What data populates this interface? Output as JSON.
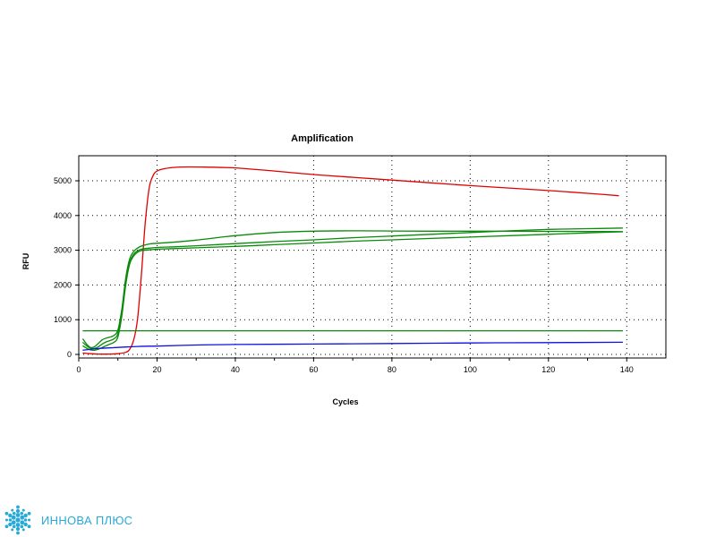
{
  "chart_data": {
    "type": "line",
    "title": "Amplification",
    "xlabel": "Cycles",
    "ylabel": "RFU",
    "xlim": [
      0,
      150
    ],
    "ylim": [
      -100,
      5450
    ],
    "x_ticks": [
      0,
      20,
      40,
      60,
      80,
      100,
      120,
      140
    ],
    "y_ticks": [
      0,
      1000,
      2000,
      3000,
      4000,
      5000
    ],
    "grid": true,
    "series": [
      {
        "color": "#e00000",
        "x": [
          1,
          3,
          5,
          8,
          10,
          12,
          13,
          14,
          15,
          16,
          17,
          18,
          19,
          20,
          22,
          25,
          28,
          32,
          40,
          50,
          60,
          70,
          80,
          90,
          100,
          110,
          120,
          130,
          138
        ],
        "y": [
          40,
          20,
          10,
          10,
          20,
          60,
          150,
          400,
          1000,
          2300,
          3800,
          4800,
          5150,
          5280,
          5350,
          5390,
          5400,
          5395,
          5370,
          5280,
          5180,
          5100,
          5020,
          4940,
          4860,
          4790,
          4720,
          4640,
          4570
        ]
      },
      {
        "color": "#0a8a0a",
        "x": [
          1,
          2,
          3,
          4,
          5,
          6,
          7,
          8,
          9,
          10,
          11,
          12,
          13,
          14,
          15,
          16,
          18,
          20,
          25,
          30,
          40,
          50,
          60,
          70,
          80,
          90,
          100,
          110,
          120,
          130,
          139
        ],
        "y": [
          450,
          300,
          200,
          220,
          320,
          420,
          470,
          500,
          550,
          700,
          1300,
          2200,
          2750,
          2960,
          3060,
          3120,
          3180,
          3200,
          3240,
          3290,
          3420,
          3510,
          3550,
          3560,
          3555,
          3550,
          3550,
          3550,
          3545,
          3540,
          3535
        ]
      },
      {
        "color": "#0a8a0a",
        "x": [
          1,
          2,
          3,
          4,
          5,
          6,
          7,
          8,
          9,
          10,
          11,
          12,
          13,
          14,
          15,
          16,
          18,
          20,
          25,
          30,
          40,
          50,
          60,
          70,
          80,
          90,
          100,
          110,
          120,
          130,
          139
        ],
        "y": [
          350,
          250,
          180,
          170,
          220,
          300,
          360,
          400,
          450,
          600,
          1200,
          2100,
          2650,
          2880,
          2980,
          3030,
          3060,
          3080,
          3100,
          3130,
          3190,
          3250,
          3300,
          3360,
          3410,
          3460,
          3510,
          3560,
          3600,
          3620,
          3640
        ]
      },
      {
        "color": "#0a8a0a",
        "x": [
          1,
          2,
          3,
          4,
          5,
          6,
          7,
          8,
          9,
          10,
          11,
          12,
          13,
          14,
          15,
          16,
          18,
          20,
          25,
          30,
          40,
          50,
          60,
          70,
          80,
          90,
          100,
          110,
          120,
          130,
          139
        ],
        "y": [
          250,
          180,
          130,
          120,
          150,
          200,
          250,
          300,
          350,
          500,
          1100,
          2000,
          2600,
          2830,
          2940,
          2990,
          3010,
          3030,
          3050,
          3070,
          3110,
          3160,
          3210,
          3260,
          3300,
          3340,
          3380,
          3420,
          3460,
          3500,
          3530
        ]
      },
      {
        "color": "#0a8a0a",
        "x": [
          1,
          139
        ],
        "y": [
          680,
          680
        ]
      },
      {
        "color": "#1010e0",
        "x": [
          1,
          5,
          10,
          15,
          20,
          30,
          40,
          60,
          80,
          100,
          120,
          139
        ],
        "y": [
          120,
          170,
          200,
          230,
          240,
          270,
          285,
          300,
          315,
          330,
          340,
          350
        ]
      }
    ]
  },
  "logo": {
    "text": "ИННОВА ПЛЮС",
    "color": "#29a9d6"
  }
}
